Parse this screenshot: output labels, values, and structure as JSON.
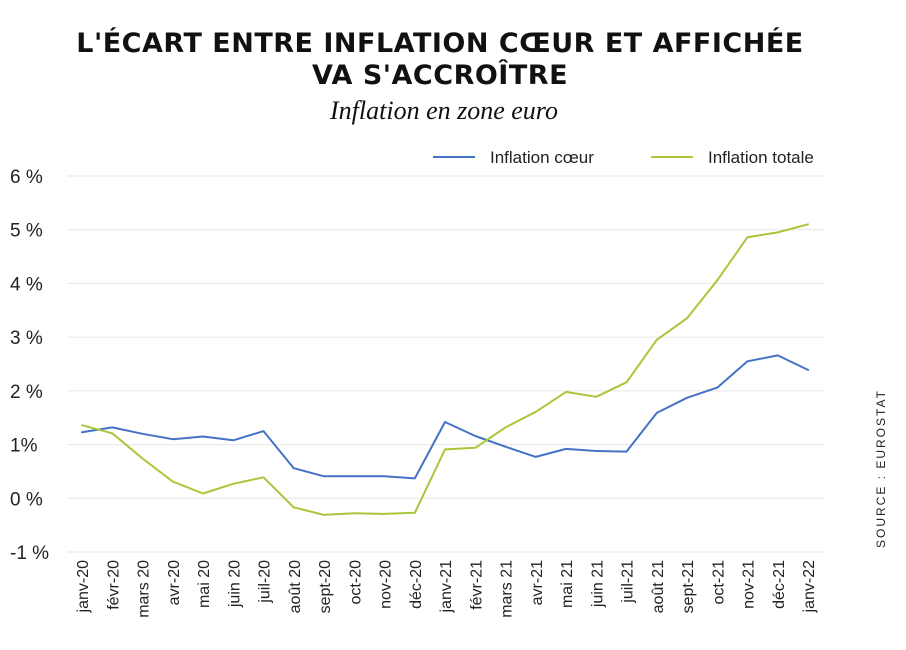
{
  "chart_data": {
    "type": "line",
    "title_lines": [
      "L'ÉCART ENTRE INFLATION CŒUR ET AFFICHÉE",
      "VA S'ACCROÎTRE"
    ],
    "subtitle": "Inflation en zone euro",
    "source": "SOURCE : EUROSTAT",
    "ylim": [
      -1,
      6
    ],
    "yticks": [
      6,
      5,
      4,
      3,
      2,
      1,
      0,
      -1
    ],
    "ytick_labels": [
      "6 %",
      "5 %",
      "4 %",
      "3 %",
      "2 %",
      "1%",
      "0 %",
      "-1 %"
    ],
    "grid": true,
    "legend_position": "top-right",
    "categories": [
      "janv-20",
      "févr-20",
      "mars 20",
      "avr-20",
      "mai 20",
      "juin 20",
      "juil-20",
      "août 20",
      "sept-20",
      "oct-20",
      "nov-20",
      "déc-20",
      "janv-21",
      "févr-21",
      "mars 21",
      "avr-21",
      "mai 21",
      "juin 21",
      "juil-21",
      "août 21",
      "sept-21",
      "oct-21",
      "nov-21",
      "déc-21",
      "janv-22"
    ],
    "series": [
      {
        "name": "Inflation cœur",
        "color": "#4472c4",
        "values": [
          1.23,
          1.32,
          1.2,
          1.1,
          1.15,
          1.08,
          1.25,
          0.56,
          0.41,
          0.41,
          0.41,
          0.37,
          1.42,
          1.16,
          0.96,
          0.77,
          0.92,
          0.88,
          0.87,
          1.59,
          1.87,
          2.06,
          2.55,
          2.66,
          2.39
        ]
      },
      {
        "name": "Inflation totale",
        "color": "#a8c739",
        "values": [
          1.36,
          1.21,
          0.74,
          0.31,
          0.09,
          0.27,
          0.39,
          -0.17,
          -0.31,
          -0.28,
          -0.29,
          -0.27,
          0.91,
          0.94,
          1.32,
          1.61,
          1.98,
          1.89,
          2.16,
          2.95,
          3.35,
          4.06,
          4.86,
          4.95,
          5.1
        ]
      }
    ]
  }
}
